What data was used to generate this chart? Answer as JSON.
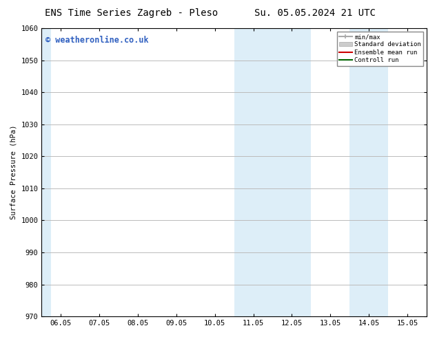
{
  "title_left": "ENS Time Series Zagreb - Pleso",
  "title_right": "Su. 05.05.2024 21 UTC",
  "ylabel": "Surface Pressure (hPa)",
  "ylim": [
    970,
    1060
  ],
  "yticks": [
    970,
    980,
    990,
    1000,
    1010,
    1020,
    1030,
    1040,
    1050,
    1060
  ],
  "xtick_labels": [
    "06.05",
    "07.05",
    "08.05",
    "09.05",
    "10.05",
    "11.05",
    "12.05",
    "13.05",
    "14.05",
    "15.05"
  ],
  "xtick_positions": [
    0,
    1,
    2,
    3,
    4,
    5,
    6,
    7,
    8,
    9
  ],
  "xlim": [
    -0.5,
    9.5
  ],
  "shaded_regions": [
    {
      "xmin": -0.5,
      "xmax": -0.25,
      "color": "#ddeef8"
    },
    {
      "xmin": 4.5,
      "xmax": 6.5,
      "color": "#ddeef8"
    },
    {
      "xmin": 7.5,
      "xmax": 8.5,
      "color": "#ddeef8"
    }
  ],
  "watermark_text": "© weatheronline.co.uk",
  "watermark_color": "#3060c0",
  "watermark_fontsize": 8.5,
  "bg_color": "#ffffff",
  "grid_color": "#bbbbbb",
  "title_fontsize": 10,
  "axis_fontsize": 7.5,
  "tick_fontsize": 7.5
}
